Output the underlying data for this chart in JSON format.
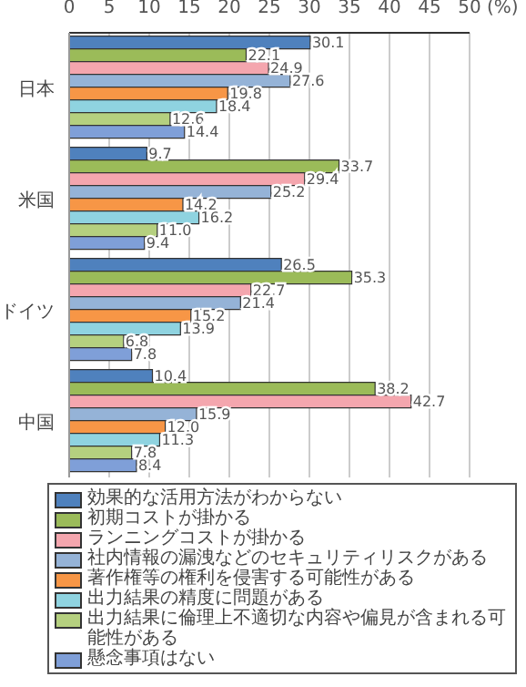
{
  "chart_data": {
    "type": "bar",
    "orientation": "horizontal",
    "categories": [
      "日本",
      "米国",
      "ドイツ",
      "中国"
    ],
    "series": [
      {
        "name": "効果的な活用方法がわからない",
        "color": "#4f81bd",
        "values": [
          30.1,
          9.7,
          26.5,
          10.4
        ],
        "value_labels": [
          "30.1",
          "9.7",
          "26.5",
          "10.4"
        ]
      },
      {
        "name": "初期コストが掛かる",
        "color": "#9bbb59",
        "values": [
          22.1,
          33.7,
          35.3,
          38.2
        ],
        "value_labels": [
          "22.1",
          "33.7",
          "35.3",
          "38.2"
        ]
      },
      {
        "name": "ランニングコストが掛かる",
        "color": "#f4a6ae",
        "values": [
          24.9,
          29.4,
          22.7,
          42.7
        ],
        "value_labels": [
          "24.9",
          "29.4",
          "22.7",
          "42.7"
        ]
      },
      {
        "name": "社内情報の漏洩などのセキュリティリスクがある",
        "color": "#95b3d7",
        "values": [
          27.6,
          25.2,
          21.4,
          15.9
        ],
        "value_labels": [
          "27.6",
          "25.2",
          "21.4",
          "15.9"
        ]
      },
      {
        "name": "著作権等の権利を侵害する可能性がある",
        "color": "#f79646",
        "values": [
          19.8,
          14.2,
          15.2,
          12.0
        ],
        "value_labels": [
          "19.8",
          "14.2",
          "15.2",
          "12.0"
        ]
      },
      {
        "name": "出力結果の精度に問題がある",
        "color": "#8fd3e0",
        "values": [
          18.4,
          16.2,
          13.9,
          11.3
        ],
        "value_labels": [
          "18.4",
          "16.2",
          "13.9",
          "11.3"
        ]
      },
      {
        "name": "出力結果に倫理上不適切な内容や偏見が含まれる可能性がある",
        "color": "#b5d07f",
        "values": [
          12.6,
          11.0,
          6.8,
          7.8
        ],
        "value_labels": [
          "12.6",
          "11.0",
          "6.8",
          "7.8"
        ]
      },
      {
        "name": "懸念事項はない",
        "color": "#7f9fd8",
        "values": [
          14.4,
          9.4,
          7.8,
          8.4
        ],
        "value_labels": [
          "14.4",
          "9.4",
          "7.8",
          "8.4"
        ]
      }
    ],
    "xlim": [
      0,
      50
    ],
    "xticks": [
      0,
      5,
      10,
      15,
      20,
      25,
      30,
      35,
      40,
      45,
      {
        "value": 50,
        "label": "50 (%)"
      }
    ],
    "grid": "x",
    "legend": "bottom"
  }
}
